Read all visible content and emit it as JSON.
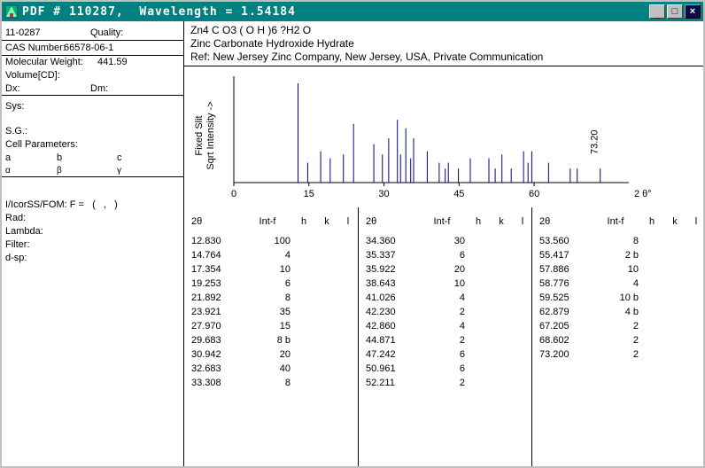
{
  "titlebar": {
    "title": "PDF # 110287,  Wavelength = 1.54184",
    "minimize_glyph": "_",
    "maximize_glyph": "□",
    "close_glyph": "×"
  },
  "colors": {
    "titlebar_bg": "#008080",
    "stick": "#00008B",
    "window_frame": "#c0c0c0"
  },
  "left_panel": {
    "set_id": "11-0287",
    "quality_label": "Quality:",
    "cas_label": "CAS Number:",
    "cas_value": "66578-06-1",
    "mw_label": "Molecular Weight:",
    "mw_value": "441.59",
    "volume_label": "Volume[CD]:",
    "dx_label": "Dx:",
    "dm_label": "Dm:",
    "sys_label": "Sys:",
    "sg_label": "S.G.:",
    "cell_label": "Cell Parameters:",
    "cell_a": "a",
    "cell_b": "b",
    "cell_c": "c",
    "cell_alpha": "α",
    "cell_beta": "β",
    "cell_gamma": "γ",
    "ssfom_label": "SS/FOM: F =   (   ,   )",
    "iicor_label": "I/Icor:",
    "rad_label": "Rad:",
    "lambda_label": "Lambda:",
    "filter_label": "Filter:",
    "dsp_label": "d-sp:"
  },
  "header": {
    "formula": "Zn4 C O3 ( O H )6 ?H2 O",
    "name": "Zinc Carbonate Hydroxide Hydrate",
    "ref": "Ref: New Jersey Zinc Company, New Jersey, USA, Private Communication"
  },
  "chart_data": {
    "type": "bar",
    "title": "",
    "xlabel": "2 θ°",
    "ylabel": "Fixed Slit Sqrt Intensity ->",
    "ylabel_lines": [
      "Fixed  Slit",
      "Sqrt  Intensity  ->"
    ],
    "x_ticks": [
      0,
      15,
      30,
      45,
      60
    ],
    "xlim": [
      0,
      77.5
    ],
    "y_scale": "sqrt",
    "intensity_range": [
      0,
      100
    ],
    "grid": false,
    "annotation": {
      "text": "73.20",
      "x": 73.2
    },
    "stick_color": "#00008B",
    "peaks": [
      [
        12.83,
        100
      ],
      [
        14.764,
        4
      ],
      [
        17.354,
        10
      ],
      [
        19.253,
        6
      ],
      [
        21.892,
        8
      ],
      [
        23.921,
        35
      ],
      [
        27.97,
        15
      ],
      [
        29.683,
        8
      ],
      [
        30.942,
        20
      ],
      [
        32.683,
        40
      ],
      [
        33.308,
        8
      ],
      [
        34.36,
        30
      ],
      [
        35.337,
        6
      ],
      [
        35.922,
        20
      ],
      [
        38.643,
        10
      ],
      [
        41.026,
        4
      ],
      [
        42.23,
        2
      ],
      [
        42.86,
        4
      ],
      [
        44.871,
        2
      ],
      [
        47.242,
        6
      ],
      [
        50.961,
        6
      ],
      [
        52.211,
        2
      ],
      [
        53.56,
        8
      ],
      [
        55.417,
        2
      ],
      [
        57.886,
        10
      ],
      [
        58.776,
        4
      ],
      [
        59.525,
        10
      ],
      [
        62.879,
        4
      ],
      [
        67.205,
        2
      ],
      [
        68.602,
        2
      ],
      [
        73.2,
        2
      ]
    ]
  },
  "table": {
    "headers": [
      "2θ",
      "Int-f",
      "h",
      "k",
      "l"
    ],
    "groups": [
      {
        "rows": [
          [
            "12.830",
            "100"
          ],
          [
            "14.764",
            "4"
          ],
          [
            "17.354",
            "10"
          ],
          [
            "19.253",
            "6"
          ],
          [
            "21.892",
            "8"
          ],
          [
            "23.921",
            "35"
          ],
          [
            "27.970",
            "15"
          ],
          [
            "29.683",
            "8 b"
          ],
          [
            "30.942",
            "20"
          ],
          [
            "32.683",
            "40"
          ],
          [
            "33.308",
            "8"
          ]
        ]
      },
      {
        "rows": [
          [
            "34.360",
            "30"
          ],
          [
            "35.337",
            "6"
          ],
          [
            "35.922",
            "20"
          ],
          [
            "38.643",
            "10"
          ],
          [
            "41.026",
            "4"
          ],
          [
            "42.230",
            "2"
          ],
          [
            "42.860",
            "4"
          ],
          [
            "44.871",
            "2"
          ],
          [
            "47.242",
            "6"
          ],
          [
            "50.961",
            "6"
          ],
          [
            "52.211",
            "2"
          ]
        ]
      },
      {
        "rows": [
          [
            "53.560",
            "8"
          ],
          [
            "55.417",
            "2 b"
          ],
          [
            "57.886",
            "10"
          ],
          [
            "58.776",
            "4"
          ],
          [
            "59.525",
            "10 b"
          ],
          [
            "62.879",
            "4 b"
          ],
          [
            "67.205",
            "2"
          ],
          [
            "68.602",
            "2"
          ],
          [
            "73.200",
            "2"
          ]
        ]
      }
    ]
  }
}
